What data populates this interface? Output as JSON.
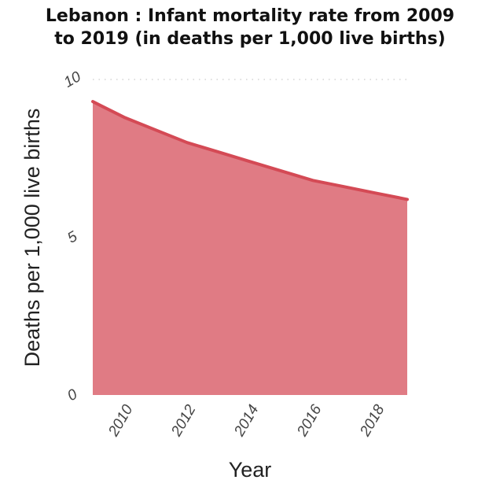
{
  "chart_data": {
    "type": "area",
    "title_lines": [
      "Lebanon : Infant mortality rate from 2009",
      "to 2019 (in deaths per 1,000 live births)"
    ],
    "xlabel": "Year",
    "ylabel": "Deaths per 1,000 live births",
    "x": [
      2009,
      2010,
      2011,
      2012,
      2013,
      2014,
      2015,
      2016,
      2017,
      2018,
      2019
    ],
    "values": [
      9.3,
      8.8,
      8.4,
      8.0,
      7.7,
      7.4,
      7.1,
      6.8,
      6.6,
      6.4,
      6.2
    ],
    "xlim": [
      2009,
      2019
    ],
    "ylim": [
      0,
      10
    ],
    "x_ticks": [
      "2010",
      "2012",
      "2014",
      "2016",
      "2018"
    ],
    "y_ticks": [
      "0",
      "5",
      "10"
    ],
    "grid": "horizontal dotted",
    "colors": {
      "fill": "#e07b84",
      "line": "#d44a55",
      "grid": "#cccccc"
    }
  }
}
